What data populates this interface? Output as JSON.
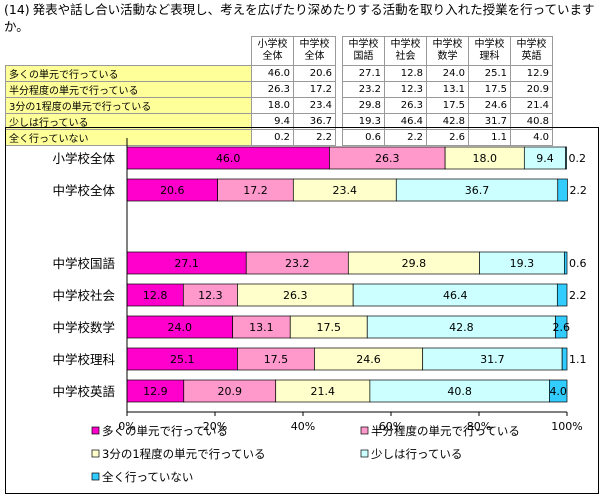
{
  "question": {
    "number": "(14)",
    "text": "発表や話し合い活動など表現し、考えを広げたり深めたりする活動を取り入れた授業を行っていますか。"
  },
  "table": {
    "headers_left": [
      [
        "小学校",
        "全体"
      ],
      [
        "中学校",
        "全体"
      ]
    ],
    "headers_right": [
      [
        "中学校",
        "国語"
      ],
      [
        "中学校",
        "社会"
      ],
      [
        "中学校",
        "数学"
      ],
      [
        "中学校",
        "理科"
      ],
      [
        "中学校",
        "英語"
      ]
    ],
    "rows": [
      {
        "label": "多くの単元で行っている",
        "values": [
          "46.0",
          "20.6",
          "27.1",
          "12.8",
          "24.0",
          "25.1",
          "12.9"
        ]
      },
      {
        "label": "半分程度の単元で行っている",
        "values": [
          "26.3",
          "17.2",
          "23.2",
          "12.3",
          "13.1",
          "17.5",
          "20.9"
        ]
      },
      {
        "label": "3分の1程度の単元で行っている",
        "values": [
          "18.0",
          "23.4",
          "29.8",
          "26.3",
          "17.5",
          "24.6",
          "21.4"
        ]
      },
      {
        "label": "少しは行っている",
        "values": [
          "9.4",
          "36.7",
          "19.3",
          "46.4",
          "42.8",
          "31.7",
          "40.8"
        ]
      },
      {
        "label": "全く行っていない",
        "values": [
          "0.2",
          "2.2",
          "0.6",
          "2.2",
          "2.6",
          "1.1",
          "4.0"
        ]
      }
    ]
  },
  "chart_data": {
    "type": "bar",
    "orientation": "horizontal",
    "stacked": "percent",
    "categories": [
      "小学校全体",
      "中学校全体",
      "中学校国語",
      "中学校社会",
      "中学校数学",
      "中学校理科",
      "中学校英語"
    ],
    "series": [
      {
        "name": "多くの単元で行っている",
        "color": "#ff00cc",
        "values": [
          46.0,
          20.6,
          27.1,
          12.8,
          24.0,
          25.1,
          12.9
        ]
      },
      {
        "name": "半分程度の単元で行っている",
        "color": "#ff99cc",
        "values": [
          26.3,
          17.2,
          23.2,
          12.3,
          13.1,
          17.5,
          20.9
        ]
      },
      {
        "name": "3分の1程度の単元で行っている",
        "color": "#ffffcc",
        "values": [
          18.0,
          23.4,
          29.8,
          26.3,
          17.5,
          24.6,
          21.4
        ]
      },
      {
        "name": "少しは行っている",
        "color": "#ccffff",
        "values": [
          9.4,
          36.7,
          19.3,
          46.4,
          42.8,
          31.7,
          40.8
        ]
      },
      {
        "name": "全く行っていない",
        "color": "#33ccff",
        "values": [
          0.2,
          2.2,
          0.6,
          2.2,
          2.6,
          1.1,
          4.0
        ]
      }
    ],
    "value_labels": [
      [
        "46.0",
        "26.3",
        "18.0",
        "9.4",
        "0.2"
      ],
      [
        "20.6",
        "17.2",
        "23.4",
        "36.7",
        "2.2"
      ],
      [
        "27.1",
        "23.2",
        "29.8",
        "19.3",
        "0.6"
      ],
      [
        "12.8",
        "12.3",
        "26.3",
        "46.4",
        "2.2"
      ],
      [
        "24.0",
        "13.1",
        "17.5",
        "42.8",
        "2.6"
      ],
      [
        "25.1",
        "17.5",
        "24.6",
        "31.7",
        "1.1"
      ],
      [
        "12.9",
        "20.9",
        "21.4",
        "40.8",
        "4.0"
      ]
    ],
    "xlim": [
      0,
      100
    ],
    "xticks": [
      "0%",
      "20%",
      "40%",
      "60%",
      "80%",
      "100%"
    ],
    "legend_position": "bottom",
    "grid": false
  }
}
